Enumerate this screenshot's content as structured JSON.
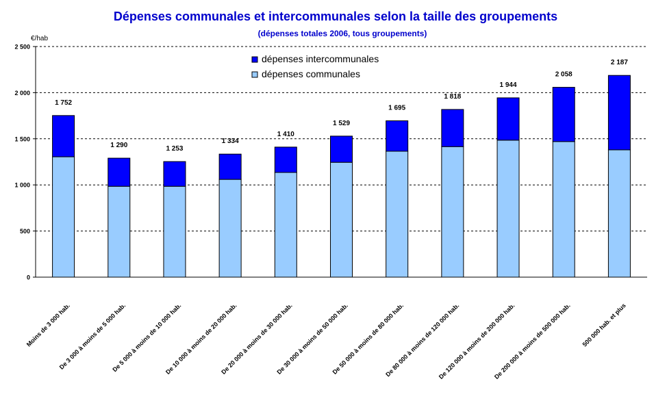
{
  "chart_data": {
    "type": "bar",
    "stacked": true,
    "title": "Dépenses communales et intercommunales selon la taille des groupements",
    "subtitle": "(dépenses totales 2006, tous groupements)",
    "ylabel": "€/hab",
    "ylim": [
      0,
      2500
    ],
    "yticks": [
      0,
      500,
      1000,
      1500,
      2000,
      2500
    ],
    "ytick_labels": [
      "0",
      "500",
      "1 000",
      "1 500",
      "2 000",
      "2 500"
    ],
    "grid": true,
    "legend_position": "top-center",
    "categories": [
      "Moins de 3 000 hab.",
      "De 3 000 à moins de 5 000 hab.",
      "De 5 000 à moins de 10 000 hab.",
      "De 10 000 à moins de 20 000 hab.",
      "De 20 000 à moins de 30 000 hab.",
      "De 30 000 à moins de 50 000 hab.",
      "De 50 000 à moins de 80 000 hab.",
      "De 80 000 à moins de 120 000 hab.",
      "De 120 000 à moins de 200 000 hab.",
      "De 200 000 à moins de 500 000 hab.",
      "500 000 hab. et plus"
    ],
    "series": [
      {
        "name": "dépenses communales",
        "color": "#99ccff",
        "values": [
          1305,
          985,
          985,
          1060,
          1135,
          1245,
          1365,
          1415,
          1485,
          1470,
          1380
        ]
      },
      {
        "name": "dépenses intercommunales",
        "color": "#0000ff",
        "values": [
          447,
          305,
          268,
          274,
          275,
          284,
          330,
          403,
          459,
          588,
          807
        ]
      }
    ],
    "totals": [
      1752,
      1290,
      1253,
      1334,
      1410,
      1529,
      1695,
      1818,
      1944,
      2058,
      2187
    ],
    "total_labels": [
      "1 752",
      "1 290",
      "1 253",
      "1 334",
      "1 410",
      "1 529",
      "1 695",
      "1 818",
      "1 944",
      "2 058",
      "2 187"
    ],
    "colors": {
      "title": "#0000cc",
      "stack_top": "#0000ff",
      "stack_bottom": "#99ccff"
    }
  }
}
